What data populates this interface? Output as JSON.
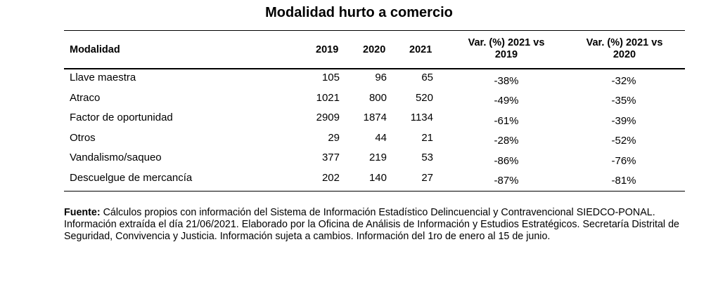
{
  "title": "Modalidad hurto a comercio",
  "table": {
    "headers": {
      "modalidad": "Modalidad",
      "y2019": "2019",
      "y2020": "2020",
      "y2021": "2021",
      "var2019_line1": "Var. (%) 2021 vs",
      "var2019_line2": "2019",
      "var2020_line1": "Var. (%) 2021 vs",
      "var2020_line2": "2020"
    },
    "rows": [
      {
        "modalidad": "Llave maestra",
        "y2019": "105",
        "y2020": "96",
        "y2021": "65",
        "var2019": "-38%",
        "var2020": "-32%"
      },
      {
        "modalidad": "Atraco",
        "y2019": "1021",
        "y2020": "800",
        "y2021": "520",
        "var2019": "-49%",
        "var2020": "-35%"
      },
      {
        "modalidad": "Factor de oportunidad",
        "y2019": "2909",
        "y2020": "1874",
        "y2021": "1134",
        "var2019": "-61%",
        "var2020": "-39%"
      },
      {
        "modalidad": "Otros",
        "y2019": "29",
        "y2020": "44",
        "y2021": "21",
        "var2019": "-28%",
        "var2020": "-52%"
      },
      {
        "modalidad": "Vandalismo/saqueo",
        "y2019": "377",
        "y2020": "219",
        "y2021": "53",
        "var2019": "-86%",
        "var2020": "-76%"
      },
      {
        "modalidad": "Descuelgue de mercancía",
        "y2019": "202",
        "y2020": "140",
        "y2021": "27",
        "var2019": "-87%",
        "var2020": "-81%"
      }
    ]
  },
  "footnote": {
    "label": "Fuente:",
    "text": "Cálculos propios con información del Sistema de Información Estadístico Delincuencial y Contravencional SIEDCO-PONAL. Información extraída el día 21/06/2021. Elaborado por la Oficina de Análisis de Información y Estudios Estratégicos. Secretaría Distrital de Seguridad, Convivencia y Justicia. Información sujeta a cambios. Información del 1ro de enero al 15 de junio."
  }
}
